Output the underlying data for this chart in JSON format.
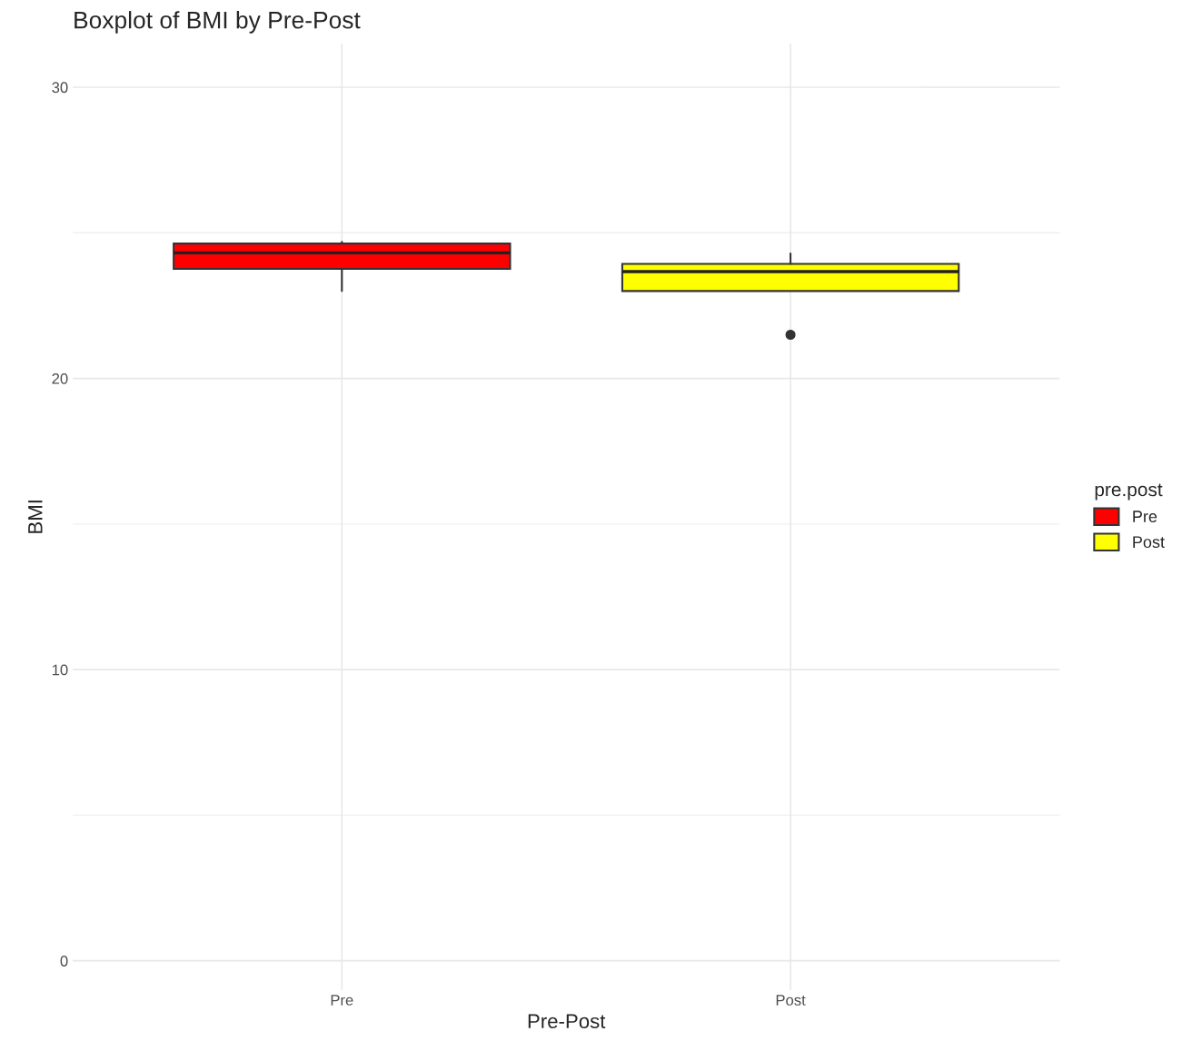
{
  "chart_data": {
    "type": "box",
    "title": "Boxplot of BMI by Pre-Post",
    "xlabel": "Pre-Post",
    "ylabel": "BMI",
    "legend_title": "pre.post",
    "categories": [
      "Pre",
      "Post"
    ],
    "series": [
      {
        "name": "Pre",
        "color": "#ff0000",
        "boxes": [
          {
            "low": 23.0,
            "q1": 23.76,
            "median": 24.31,
            "q3": 24.63,
            "high": 24.69
          },
          null
        ]
      },
      {
        "name": "Post",
        "color": "#ffff00",
        "boxes": [
          null,
          {
            "low": 23.0,
            "q1": 23.0,
            "median": 23.67,
            "q3": 23.93,
            "high": 24.29,
            "outliers": [
              21.5
            ]
          }
        ]
      }
    ],
    "ylim": [
      -1,
      31.5
    ],
    "yticks": [
      0,
      10,
      20,
      30
    ],
    "grid": true,
    "legend": "right"
  }
}
